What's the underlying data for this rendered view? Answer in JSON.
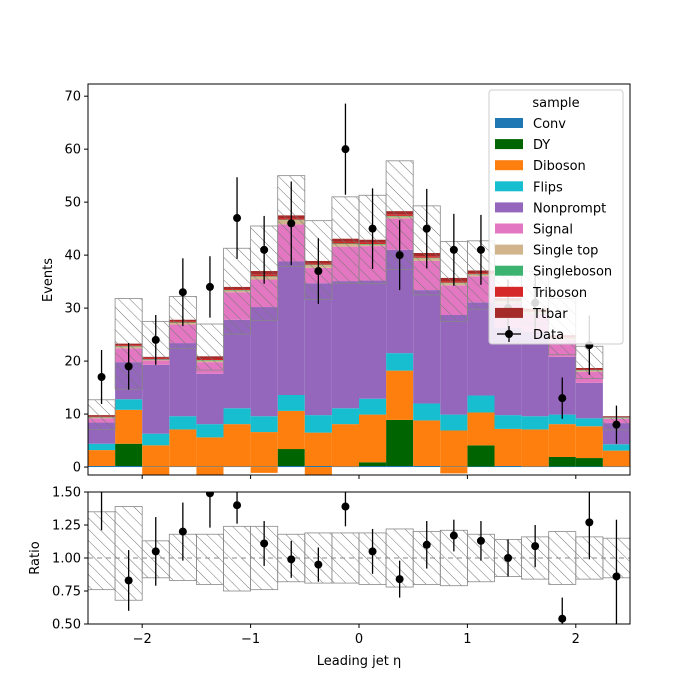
{
  "chart_data": {
    "type": "bar",
    "stacked": true,
    "x_edges": [
      -2.5,
      -2.25,
      -2.0,
      -1.75,
      -1.5,
      -1.25,
      -1.0,
      -0.75,
      -0.5,
      -0.25,
      0.0,
      0.25,
      0.5,
      0.75,
      1.0,
      1.25,
      1.5,
      1.75,
      2.0,
      2.25,
      2.5
    ],
    "x_centers": [
      -2.375,
      -2.125,
      -1.875,
      -1.625,
      -1.375,
      -1.125,
      -0.875,
      -0.625,
      -0.375,
      -0.125,
      0.125,
      0.375,
      0.625,
      0.875,
      1.125,
      1.375,
      1.625,
      1.875,
      2.125,
      2.375
    ],
    "xlabel": "Leading jet  η",
    "ylabel": "Events",
    "ylabel_ratio": "Ratio",
    "xlim": [
      -2.5,
      2.5
    ],
    "ylim": [
      -1.5,
      72.3
    ],
    "ratio_ylim": [
      0.5,
      1.5
    ],
    "xticks": [
      "−2",
      "−1",
      "0",
      "1",
      "2"
    ],
    "xtick_values": [
      -2,
      -1,
      0,
      1,
      2
    ],
    "yticks": [
      "0",
      "10",
      "20",
      "30",
      "40",
      "50",
      "60",
      "70"
    ],
    "ytick_values": [
      0,
      10,
      20,
      30,
      40,
      50,
      60,
      70
    ],
    "ratio_yticks": [
      "0.50",
      "0.75",
      "1.00",
      "1.25",
      "1.50"
    ],
    "ratio_ytick_values": [
      0.5,
      0.75,
      1.0,
      1.25,
      1.5
    ],
    "legend_title": "sample",
    "legend_position": "top-right",
    "series": [
      {
        "name": "Conv",
        "color": "#1f77b4",
        "values": [
          0.2,
          0.2,
          0.1,
          0.1,
          0.1,
          0.1,
          0.1,
          0.2,
          0.2,
          0.1,
          0.2,
          0.2,
          0.2,
          0.1,
          0.1,
          0.2,
          0.1,
          0.1,
          0.1,
          0.1
        ]
      },
      {
        "name": "DY",
        "color": "#006400",
        "values": [
          0,
          4.2,
          0,
          0,
          0,
          0,
          0,
          3.2,
          0,
          0,
          0.7,
          8.7,
          0,
          0,
          4.0,
          0,
          0,
          1.8,
          1.6,
          0
        ]
      },
      {
        "name": "Diboson",
        "color": "#ff7f0e",
        "values": [
          3.0,
          6.4,
          4.0,
          7.0,
          5.5,
          8.0,
          6.5,
          7.2,
          6.3,
          8.0,
          9.0,
          9.3,
          8.6,
          6.8,
          6.2,
          7.0,
          7.0,
          6.2,
          6.0,
          3.0
        ]
      },
      {
        "name": "Flips",
        "color": "#17becf",
        "values": [
          1.2,
          2.0,
          2.2,
          2.5,
          2.5,
          3.0,
          3.0,
          3.0,
          3.3,
          3.0,
          3.0,
          3.3,
          3.2,
          3.0,
          3.2,
          2.6,
          2.5,
          1.8,
          1.5,
          1.2
        ]
      },
      {
        "name": "Nonprompt",
        "color": "#9467bd",
        "values": [
          4.0,
          7.0,
          13.0,
          13.8,
          9.5,
          16.7,
          20.6,
          25.2,
          24.9,
          24.0,
          22.3,
          19.5,
          21.4,
          18.8,
          17.6,
          16.5,
          15.9,
          10.9,
          6.7,
          4.0
        ]
      },
      {
        "name": "Signal",
        "color": "#e377c2",
        "values": [
          0.8,
          2.6,
          0.8,
          3.5,
          2.2,
          5.2,
          5.2,
          7.0,
          2.9,
          6.5,
          6.5,
          5.9,
          5.5,
          5.6,
          4.9,
          4.6,
          3.4,
          3.2,
          2.1,
          0.8
        ]
      },
      {
        "name": "Single top",
        "color": "#d2b48c",
        "values": [
          0.1,
          0.3,
          0.2,
          0.3,
          0.3,
          0.3,
          0.5,
          0.8,
          0.5,
          0.5,
          0.3,
          0.4,
          0.5,
          0.4,
          0.3,
          0.3,
          0.3,
          0.2,
          0.2,
          0.1
        ]
      },
      {
        "name": "Singleboson",
        "color": "#3cb371",
        "values": [
          0.1,
          0.1,
          0.1,
          0.1,
          0.1,
          0.1,
          0.1,
          0.1,
          0.1,
          0.1,
          0.1,
          0.1,
          0.1,
          0.1,
          0.1,
          0.1,
          0.1,
          0.1,
          0.1,
          0.1
        ]
      },
      {
        "name": "Triboson",
        "color": "#d62728",
        "values": [
          0.1,
          0.2,
          0.2,
          0.2,
          0.2,
          0.2,
          0.3,
          0.3,
          0.2,
          0.3,
          0.3,
          0.3,
          0.3,
          0.3,
          0.2,
          0.2,
          0.2,
          0.2,
          0.1,
          0.1
        ]
      },
      {
        "name": "Ttbar",
        "color": "#a52a2a",
        "values": [
          0.3,
          0.3,
          0.2,
          0.3,
          0.5,
          0.4,
          0.7,
          0.5,
          0.5,
          0.6,
          0.5,
          0.6,
          0.6,
          0.6,
          0.5,
          0.4,
          0.4,
          0.4,
          0.3,
          0.2
        ]
      }
    ],
    "negative_diboson_bins": [
      2,
      4,
      6,
      8,
      13
    ],
    "negative_diboson_values": [
      -1.4,
      -1.5,
      -1.1,
      -1.4,
      -1.2
    ],
    "uncertainty_band": {
      "upper": [
        12.7,
        31.8,
        27.5,
        32.2,
        27.0,
        41.3,
        45.5,
        55.0,
        46.5,
        51.0,
        51.3,
        57.8,
        49.3,
        42.6,
        42.7,
        37.2,
        37.0,
        31.8,
        22.8,
        9.4
      ],
      "lower": [
        7.1,
        14.7,
        20.3,
        22.4,
        18.3,
        25.1,
        27.7,
        37.9,
        31.6,
        34.7,
        34.6,
        37.3,
        32.5,
        27.5,
        29.8,
        28.1,
        26.9,
        21.2,
        16.7,
        7.0
      ]
    },
    "data_points": {
      "name": "Data",
      "values": [
        17,
        19,
        24,
        33,
        34,
        47,
        41,
        46,
        37,
        60,
        45,
        40,
        45,
        41,
        41,
        30,
        31,
        13,
        23,
        8
      ],
      "errors": [
        5.1,
        4.4,
        4.7,
        6.4,
        5.8,
        7.7,
        6.4,
        7.9,
        6.2,
        8.6,
        7.6,
        6.6,
        7.5,
        6.8,
        6.6,
        5.4,
        5.5,
        3.9,
        5.6,
        3.6
      ]
    },
    "ratio": {
      "values": [
        1.71,
        0.83,
        1.05,
        1.2,
        1.49,
        1.4,
        1.11,
        0.99,
        0.95,
        1.39,
        1.05,
        0.84,
        1.1,
        1.17,
        1.13,
        1.0,
        1.09,
        0.54,
        1.27,
        0.86
      ],
      "errors": [
        0.5,
        0.23,
        0.26,
        0.22,
        0.26,
        0.14,
        0.17,
        0.14,
        0.13,
        0.15,
        0.17,
        0.14,
        0.18,
        0.12,
        0.15,
        0.14,
        0.16,
        0.16,
        0.28,
        0.43
      ],
      "band_upper": [
        1.35,
        1.39,
        1.13,
        1.18,
        1.18,
        1.24,
        1.24,
        1.18,
        1.19,
        1.19,
        1.19,
        1.22,
        1.2,
        1.21,
        1.18,
        1.14,
        1.16,
        1.2,
        1.16,
        1.15
      ],
      "band_lower": [
        0.76,
        0.68,
        0.85,
        0.83,
        0.8,
        0.75,
        0.76,
        0.82,
        0.81,
        0.81,
        0.8,
        0.78,
        0.8,
        0.79,
        0.82,
        0.86,
        0.84,
        0.8,
        0.84,
        0.85
      ]
    }
  }
}
